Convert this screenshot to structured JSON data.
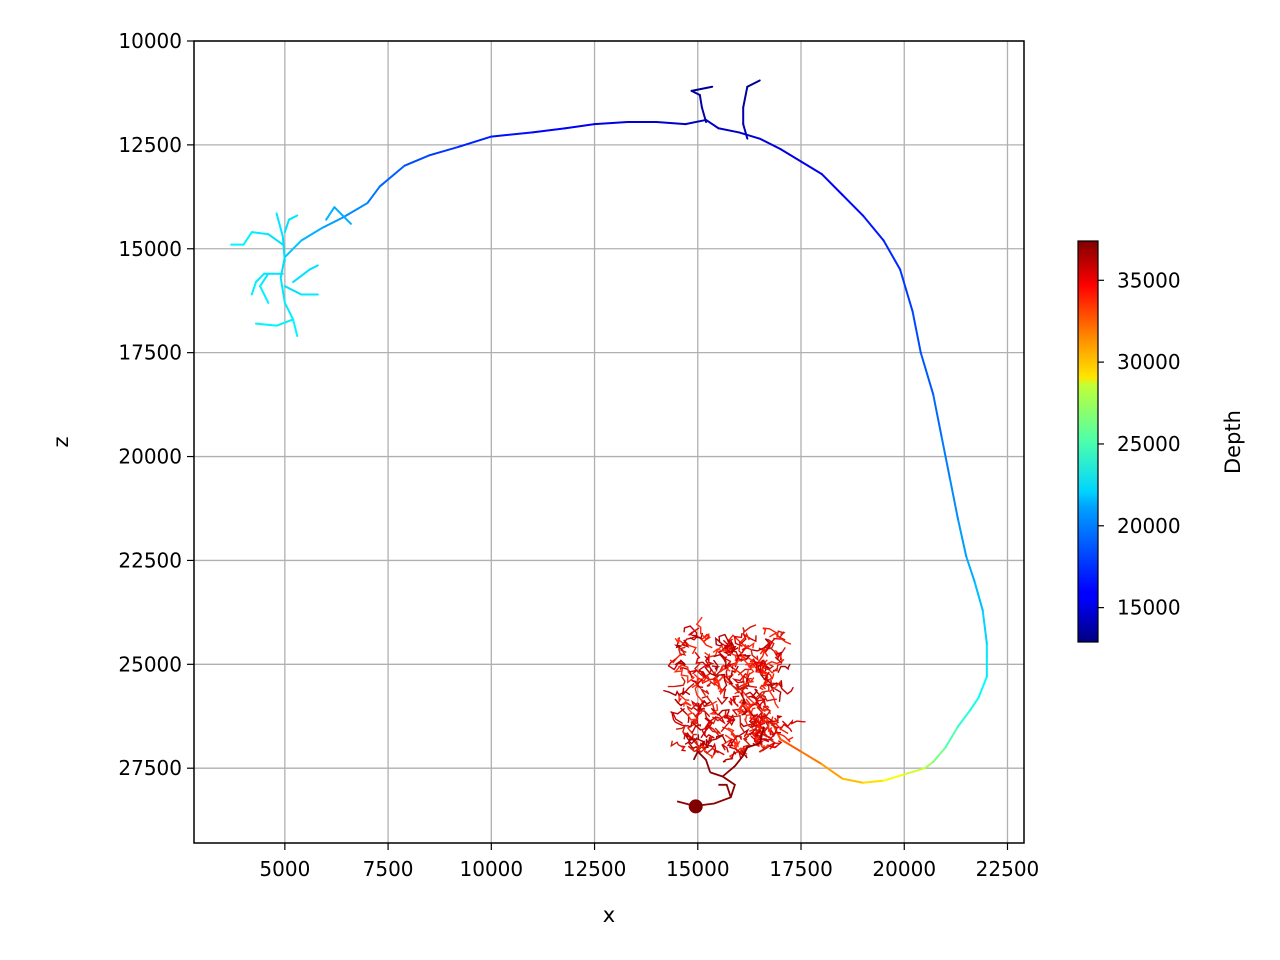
{
  "chart_data": {
    "type": "line",
    "title": "",
    "xlabel": "x",
    "ylabel": "z",
    "xlim": [
      2800,
      22900
    ],
    "ylim": [
      29300,
      10000
    ],
    "y_inverted": true,
    "grid": true,
    "x_ticks": [
      5000,
      7500,
      10000,
      12500,
      15000,
      17500,
      20000,
      22500
    ],
    "y_ticks": [
      10000,
      12500,
      15000,
      17500,
      20000,
      22500,
      25000,
      27500
    ],
    "x_tick_labels": [
      "5000",
      "7500",
      "10000",
      "12500",
      "15000",
      "17500",
      "20000",
      "22500"
    ],
    "y_tick_labels": [
      "10000",
      "12500",
      "15000",
      "17500",
      "20000",
      "22500",
      "25000",
      "27500"
    ],
    "colorbar": {
      "label": "Depth",
      "colormap": "jet",
      "range": [
        12900,
        37400
      ],
      "ticks": [
        15000,
        20000,
        25000,
        30000,
        35000
      ],
      "tick_labels": [
        "15000",
        "20000",
        "25000",
        "30000",
        "35000"
      ]
    },
    "soma": {
      "x": 14950,
      "z": 28420,
      "depth": 37400
    },
    "series": [
      {
        "segment": "main-axon",
        "points": [
          [
            16800,
            26400,
            33000
          ],
          [
            17000,
            26800,
            32500
          ],
          [
            17500,
            27100,
            32000
          ],
          [
            18000,
            27400,
            31000
          ],
          [
            18500,
            27750,
            30000
          ],
          [
            19000,
            27850,
            29500
          ],
          [
            19500,
            27800,
            28500
          ],
          [
            20000,
            27650,
            27500
          ],
          [
            20500,
            27500,
            26500
          ],
          [
            20700,
            27350,
            25500
          ],
          [
            21000,
            27000,
            24500
          ],
          [
            21300,
            26500,
            23500
          ],
          [
            21600,
            26100,
            22800
          ],
          [
            21800,
            25800,
            22300
          ],
          [
            22000,
            25300,
            21800
          ],
          [
            22000,
            24500,
            21300
          ],
          [
            21900,
            23700,
            20800
          ],
          [
            21700,
            23000,
            20300
          ],
          [
            21500,
            22400,
            19900
          ],
          [
            21300,
            21500,
            19500
          ],
          [
            21100,
            20500,
            19100
          ],
          [
            20900,
            19500,
            18700
          ],
          [
            20700,
            18500,
            18300
          ],
          [
            20400,
            17500,
            17900
          ],
          [
            20200,
            16500,
            17500
          ],
          [
            19900,
            15500,
            17100
          ],
          [
            19500,
            14800,
            16700
          ],
          [
            19000,
            14200,
            16300
          ],
          [
            18500,
            13700,
            16000
          ],
          [
            18000,
            13200,
            15700
          ],
          [
            17500,
            12900,
            15400
          ],
          [
            17000,
            12600,
            15200
          ],
          [
            16500,
            12350,
            15000
          ],
          [
            16000,
            12200,
            14800
          ],
          [
            15500,
            12100,
            14600
          ],
          [
            15200,
            11900,
            14400
          ],
          [
            14700,
            12000,
            14600
          ],
          [
            14000,
            11950,
            14900
          ],
          [
            13300,
            11950,
            15200
          ],
          [
            12500,
            12000,
            15500
          ],
          [
            11800,
            12100,
            15800
          ],
          [
            11000,
            12200,
            16100
          ],
          [
            10000,
            12300,
            16500
          ],
          [
            9200,
            12550,
            17000
          ],
          [
            8500,
            12750,
            17500
          ],
          [
            7900,
            13000,
            18000
          ],
          [
            7300,
            13500,
            18500
          ],
          [
            7000,
            13900,
            19000
          ],
          [
            6400,
            14250,
            19500
          ],
          [
            5900,
            14500,
            20000
          ],
          [
            5400,
            14800,
            20500
          ],
          [
            5000,
            15200,
            21000
          ]
        ]
      },
      {
        "segment": "dorsal-branch-a",
        "points": [
          [
            15200,
            11950,
            14200
          ],
          [
            15100,
            11600,
            13900
          ],
          [
            15050,
            11300,
            13600
          ],
          [
            14850,
            11200,
            13400
          ],
          [
            15350,
            11100,
            13200
          ]
        ]
      },
      {
        "segment": "dorsal-branch-b",
        "points": [
          [
            16200,
            12350,
            14700
          ],
          [
            16100,
            12000,
            14300
          ],
          [
            16100,
            11600,
            13900
          ],
          [
            16200,
            11100,
            13500
          ],
          [
            16500,
            10950,
            13200
          ]
        ]
      },
      {
        "segment": "cyan-tuft-1",
        "points": [
          [
            5000,
            15300,
            21200
          ],
          [
            4950,
            14700,
            21400
          ],
          [
            4800,
            14150,
            21600
          ]
        ]
      },
      {
        "segment": "cyan-tuft-2",
        "points": [
          [
            4950,
            14900,
            21300
          ],
          [
            4600,
            14650,
            21500
          ],
          [
            4200,
            14600,
            21700
          ],
          [
            4000,
            14900,
            21800
          ],
          [
            3700,
            14900,
            21900
          ]
        ]
      },
      {
        "segment": "cyan-tuft-3",
        "points": [
          [
            5000,
            15200,
            21200
          ],
          [
            4900,
            15700,
            21400
          ],
          [
            5000,
            16300,
            21600
          ],
          [
            5200,
            16700,
            21800
          ],
          [
            5300,
            17100,
            22000
          ]
        ]
      },
      {
        "segment": "cyan-tuft-4",
        "points": [
          [
            4950,
            15600,
            21300
          ],
          [
            4500,
            15600,
            21500
          ],
          [
            4300,
            15800,
            21700
          ],
          [
            4200,
            16100,
            21800
          ]
        ]
      },
      {
        "segment": "cyan-tuft-5",
        "points": [
          [
            5000,
            15900,
            21300
          ],
          [
            5400,
            16100,
            21500
          ],
          [
            5800,
            16100,
            21700
          ]
        ]
      },
      {
        "segment": "cyan-tuft-6",
        "points": [
          [
            5200,
            15800,
            21300
          ],
          [
            5600,
            15500,
            21400
          ],
          [
            5800,
            15400,
            21500
          ]
        ]
      },
      {
        "segment": "cyan-tuft-7",
        "points": [
          [
            5200,
            16700,
            21700
          ],
          [
            4800,
            16850,
            21800
          ],
          [
            4300,
            16800,
            21900
          ]
        ]
      },
      {
        "segment": "cyan-tuft-8",
        "points": [
          [
            6000,
            14300,
            20300
          ],
          [
            6200,
            14000,
            20200
          ],
          [
            6600,
            14400,
            20100
          ]
        ]
      },
      {
        "segment": "cyan-tuft-9",
        "points": [
          [
            5000,
            14600,
            21300
          ],
          [
            5100,
            14300,
            21400
          ],
          [
            5300,
            14200,
            21500
          ]
        ]
      },
      {
        "segment": "cyan-tuft-10",
        "points": [
          [
            4600,
            15600,
            21500
          ],
          [
            4400,
            15900,
            21700
          ],
          [
            4600,
            16300,
            21800
          ]
        ]
      }
    ]
  }
}
